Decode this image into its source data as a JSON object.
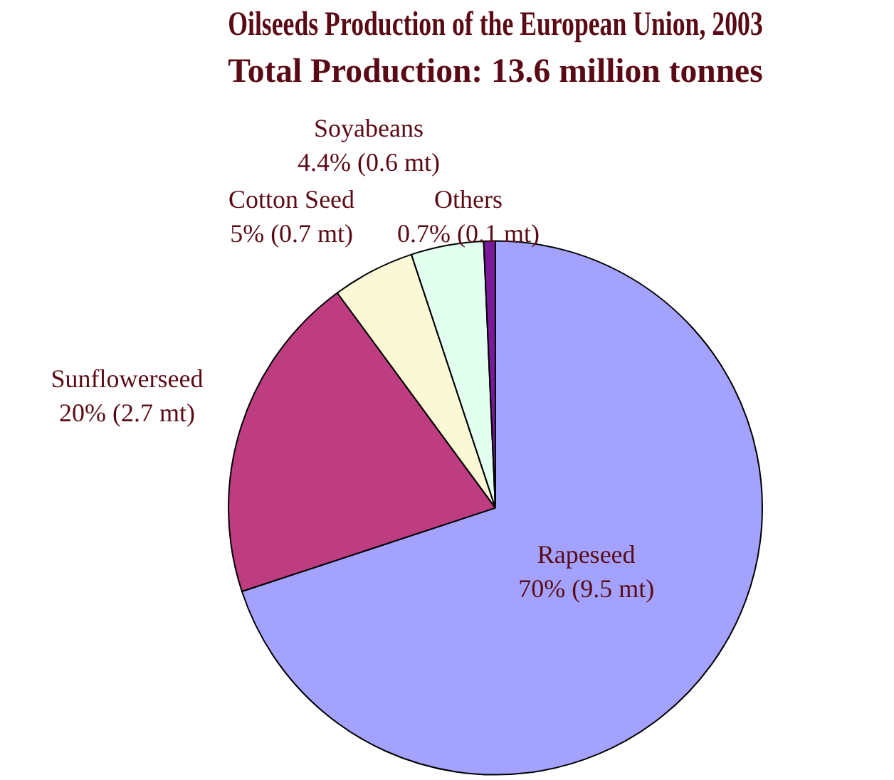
{
  "chart_data": {
    "type": "pie",
    "title": "Oilseeds Production of the European Union, 2003",
    "subtitle": "Total Production: 13.6 million tonnes",
    "categories": [
      "Rapeseed",
      "Sunflowerseed",
      "Cotton Seed",
      "Soyabeans",
      "Others"
    ],
    "values": [
      70,
      20,
      5,
      4.4,
      0.7
    ],
    "value_labels": [
      "70% (9.5 mt)",
      "20% (2.7 mt)",
      "5% (0.7 mt)",
      "4.4% (0.6 mt)",
      "0.7% (0.1 mt)"
    ],
    "colors": [
      "#a3a3ff",
      "#bd3d80",
      "#fbf8d6",
      "#e3fff0",
      "#7a1a9a"
    ],
    "legend": false
  }
}
